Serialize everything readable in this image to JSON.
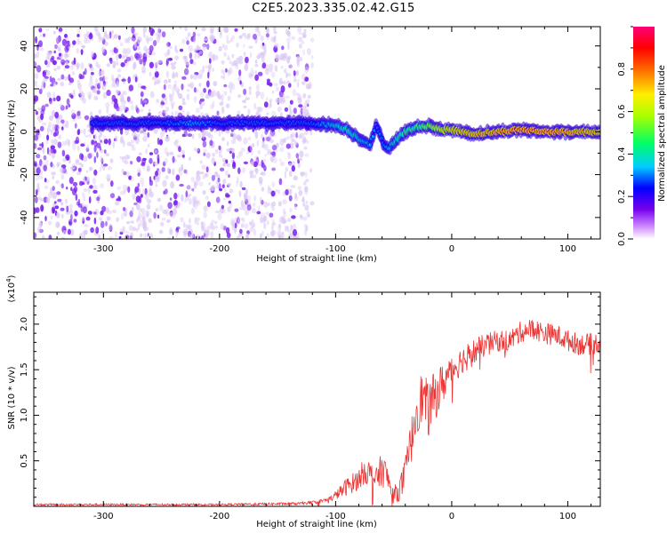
{
  "title": "C2E5.2023.335.02.42.G15",
  "colors": {
    "snr_line": "#ee3333",
    "axis": "#000000",
    "dot_purple": "#7a22ee",
    "dot_light": "#d9c6f3"
  },
  "chart_data": [
    {
      "type": "heatmap",
      "xlabel": "Height of straight line (km)",
      "ylabel": "Frequency (Hz)",
      "xlim": [
        -360,
        128
      ],
      "ylim": [
        -50,
        49
      ],
      "xticks": [
        -300,
        -200,
        -100,
        0,
        100
      ],
      "xtick_labels": [
        "-300",
        "-200",
        "-100",
        "0",
        "100"
      ],
      "yticks": [
        -40,
        -20,
        0,
        20,
        40
      ],
      "ytick_labels": [
        "-40",
        "-20",
        "0",
        "20",
        "40"
      ],
      "noise_extent_km": [
        -360,
        -120
      ],
      "ridge": {
        "x": [
          -310,
          -280,
          -250,
          -220,
          -200,
          -170,
          -140,
          -120,
          -100,
          -90,
          -80,
          -70,
          -65,
          -60,
          -55,
          -50,
          -40,
          -30,
          -20,
          -10,
          0,
          20,
          40,
          60,
          80,
          100,
          128
        ],
        "y": [
          4,
          4,
          4,
          4,
          4,
          4,
          4,
          4,
          3,
          1,
          -3,
          -6,
          3,
          -4,
          -8,
          -5,
          0,
          2,
          3,
          1,
          1,
          -1,
          0,
          1,
          0,
          0,
          0
        ],
        "amplitude": [
          0.3,
          0.3,
          0.3,
          0.35,
          0.3,
          0.3,
          0.3,
          0.3,
          0.4,
          0.45,
          0.4,
          0.35,
          0.3,
          0.3,
          0.35,
          0.4,
          0.5,
          0.5,
          0.6,
          0.7,
          0.75,
          0.8,
          0.85,
          0.9,
          0.9,
          0.85,
          0.8
        ]
      },
      "colorbar": {
        "label": "Normalized spectral amplitude",
        "range": [
          0,
          1
        ],
        "ticks": [
          0.0,
          0.2,
          0.4,
          0.6,
          0.8
        ],
        "tick_labels": [
          "0.0",
          "0.2",
          "0.4",
          "0.6",
          "0.8"
        ]
      }
    },
    {
      "type": "line",
      "xlabel": "Height of straight line (km)",
      "ylabel": "SNR (10 * v/v)",
      "yscale_label": "(x10",
      "yscale_exp": "4",
      "yscale_close": ")",
      "xlim": [
        -360,
        128
      ],
      "ylim": [
        0,
        2.35
      ],
      "xticks": [
        -300,
        -200,
        -100,
        0,
        100
      ],
      "xtick_labels": [
        "-300",
        "-200",
        "-100",
        "0",
        "100"
      ],
      "yticks": [
        0.5,
        1.0,
        1.5,
        2.0
      ],
      "ytick_labels": [
        "0.5",
        "1.0",
        "1.5",
        "2.0"
      ],
      "series": [
        {
          "x": [
            -360,
            -300,
            -200,
            -130,
            -115,
            -105,
            -100,
            -90,
            -80,
            -75,
            -70,
            -65,
            -60,
            -55,
            -50,
            -45,
            -40,
            -35,
            -30,
            -25,
            -20,
            -15,
            -10,
            -5,
            0,
            10,
            20,
            30,
            40,
            50,
            60,
            70,
            80,
            90,
            100,
            110,
            120,
            128
          ],
          "y": [
            0.02,
            0.02,
            0.02,
            0.03,
            0.05,
            0.08,
            0.12,
            0.22,
            0.3,
            0.4,
            0.35,
            0.3,
            0.42,
            0.3,
            0.12,
            0.18,
            0.35,
            0.7,
            1.1,
            1.2,
            1.05,
            1.2,
            1.3,
            1.4,
            1.5,
            1.62,
            1.7,
            1.78,
            1.82,
            1.82,
            1.92,
            1.95,
            1.9,
            1.88,
            1.82,
            1.78,
            1.78,
            1.8
          ],
          "noise": [
            0.01,
            0.01,
            0.01,
            0.015,
            0.02,
            0.03,
            0.05,
            0.1,
            0.12,
            0.15,
            0.15,
            0.12,
            0.2,
            0.15,
            0.1,
            0.12,
            0.2,
            0.25,
            0.3,
            0.3,
            0.3,
            0.28,
            0.25,
            0.2,
            0.18,
            0.15,
            0.15,
            0.12,
            0.12,
            0.12,
            0.12,
            0.12,
            0.12,
            0.12,
            0.12,
            0.12,
            0.12,
            0.12
          ]
        }
      ]
    }
  ]
}
